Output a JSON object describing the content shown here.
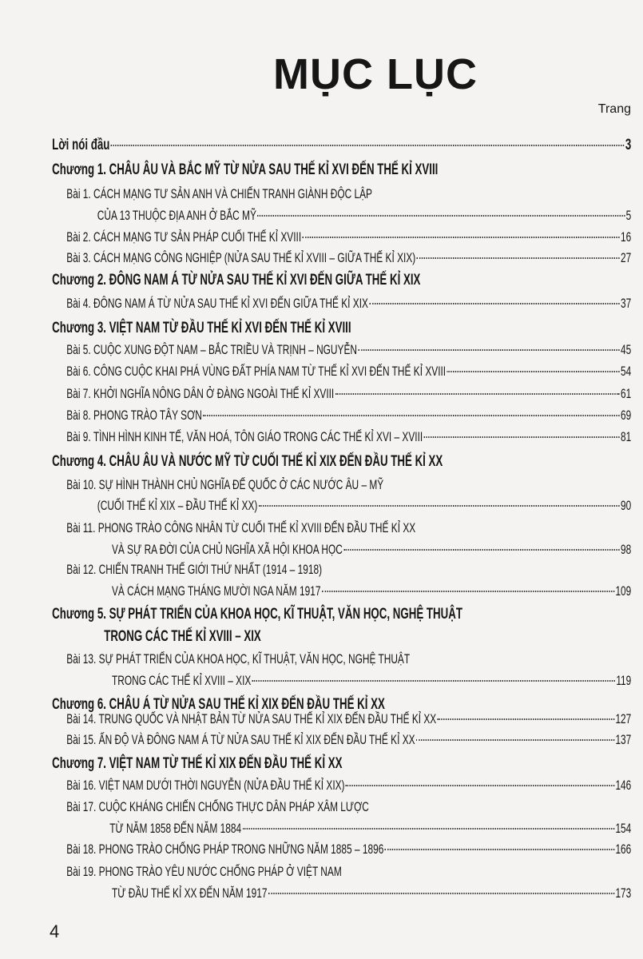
{
  "title": "MỤC LỤC",
  "page_col_label": "Trang",
  "front": {
    "label": "Lời nói đầu",
    "page": "3"
  },
  "ch1": {
    "title": "Chương 1. CHÂU ÂU VÀ BẮC MỸ TỪ NỬA SAU THẾ KỈ XVI ĐẾN THẾ KỈ XVIII",
    "b1": {
      "line1": "Bài 1. CÁCH MẠNG TƯ SẢN ANH VÀ CHIẾN TRANH GIÀNH ĐỘC LẬP",
      "line2": "CỦA 13 THUỘC ĐỊA ANH  Ở BẮC MỸ",
      "page": "5"
    },
    "b2": {
      "label": "Bài 2. CÁCH MẠNG TƯ SẢN PHÁP CUỐI THẾ KỈ XVIII",
      "page": "16"
    },
    "b3": {
      "label": "Bài 3. CÁCH MẠNG CÔNG NGHIỆP (NỬA SAU THẾ KỈ XVIII – GIỮA THẾ KỈ XIX)",
      "page": "27"
    }
  },
  "ch2": {
    "title": "Chương 2. ĐÔNG NAM Á TỪ NỬA SAU THẾ KỈ XVI ĐẾN GIỮA THẾ KỈ XIX",
    "b4": {
      "label": "Bài 4. ĐÔNG NAM Á TỪ NỬA SAU THẾ KỈ XVI ĐẾN GIỮA THẾ KỈ XIX",
      "page": "37"
    }
  },
  "ch3": {
    "title": "Chương 3. VIỆT NAM TỪ ĐẦU THẾ KỈ XVI ĐẾN THẾ KỈ XVIII",
    "b5": {
      "label": "Bài 5. CUỘC XUNG ĐỘT NAM – BẮC TRIỀU VÀ TRỊNH – NGUYỄN",
      "page": "45"
    },
    "b6": {
      "label": "Bài 6. CÔNG CUỘC KHAI PHÁ VÙNG ĐẤT PHÍA NAM TỪ THẾ KỈ XVI ĐẾN THẾ KỈ XVIII",
      "page": "54"
    },
    "b7": {
      "label": "Bài 7. KHỞI NGHĨA NÔNG DÂN Ở ĐÀNG NGOÀI THẾ KỈ XVIII",
      "page": "61"
    },
    "b8": {
      "label": "Bài 8. PHONG TRÀO TÂY SƠN",
      "page": "69"
    },
    "b9": {
      "label": "Bài 9. TÌNH HÌNH KINH TẾ, VĂN HOÁ, TÔN GIÁO  TRONG CÁC THẾ KỈ XVI – XVIII",
      "page": "81"
    }
  },
  "ch4": {
    "title": "Chương 4. CHÂU ÂU VÀ NƯỚC MỸ TỪ CUỐI THẾ KỈ XIX ĐẾN ĐẦU THẾ KỈ XX",
    "b10": {
      "line1": "Bài 10. SỰ HÌNH THÀNH CHỦ NGHĨA ĐẾ QUỐC Ở CÁC NƯỚC ÂU – MỸ",
      "line2": "(CUỐI THẾ KỈ XIX – ĐẦU THẾ KỈ XX)",
      "page": "90"
    },
    "b11": {
      "line1": "Bài 11. PHONG TRÀO CÔNG NHÂN TỪ CUỐI THẾ KỈ XVIII ĐẾN ĐẦU THẾ KỈ XX",
      "line2": "VÀ SỰ RA ĐỜI CỦA CHỦ NGHĨA XÃ HỘI KHOA HỌC",
      "page": "98"
    },
    "b12": {
      "line1": "Bài 12. CHIẾN TRANH THẾ GIỚI THỨ NHẤT (1914 – 1918)",
      "line2": "VÀ CÁCH MẠNG THÁNG MƯỜI NGA NĂM 1917",
      "page": "109"
    }
  },
  "ch5": {
    "title_line1": "Chương 5. SỰ PHÁT TRIỂN CỦA KHOA HỌC, KĨ THUẬT, VĂN HỌC, NGHỆ THUẬT",
    "title_line2": "TRONG CÁC THẾ KỈ XVIII – XIX",
    "b13": {
      "line1": "Bài 13. SỰ PHÁT TRIỂN CỦA KHOA HỌC, KĨ THUẬT, VĂN HỌC, NGHỆ THUẬT",
      "line2": "TRONG CÁC THẾ KỈ XVIII – XIX",
      "page": "119"
    }
  },
  "ch6": {
    "title": "Chương 6. CHÂU Á TỪ NỬA SAU THẾ KỈ XIX ĐẾN ĐẦU THẾ KỈ XX",
    "b14": {
      "label": "Bài 14. TRUNG QUỐC VÀ NHẬT BẢN TỪ NỬA SAU THẾ KỈ XIX ĐẾN ĐẦU THẾ KỈ XX",
      "page": "127"
    },
    "b15": {
      "label": "Bài 15. ẤN ĐỘ VÀ ĐÔNG NAM Á TỪ NỬA SAU THẾ KỈ XIX ĐẾN ĐẦU THẾ KỈ XX",
      "page": "137"
    }
  },
  "ch7": {
    "title": "Chương 7. VIỆT NAM TỪ THẾ KỈ XIX ĐẾN ĐẦU THẾ KỈ XX",
    "b16": {
      "label": "Bài 16. VIỆT NAM DƯỚI THỜI NGUYỄN (NỬA ĐẦU THẾ KỈ XIX)",
      "page": "146"
    },
    "b17": {
      "line1": "Bài 17. CUỘC KHÁNG CHIẾN CHỐNG THỰC DÂN PHÁP XÂM LƯỢC",
      "line2": "TỪ NĂM 1858 ĐẾN NĂM 1884",
      "page": "154"
    },
    "b18": {
      "label": "Bài 18. PHONG TRÀO CHỐNG PHÁP TRONG NHỮNG NĂM 1885 – 1896",
      "page": "166"
    },
    "b19": {
      "line1": "Bài 19. PHONG TRÀO YÊU NƯỚC CHỐNG PHÁP Ở VIỆT NAM",
      "line2": "TỪ ĐẦU THẾ KỈ XX ĐẾN NĂM 1917",
      "page": "173"
    }
  },
  "page_number": "4"
}
